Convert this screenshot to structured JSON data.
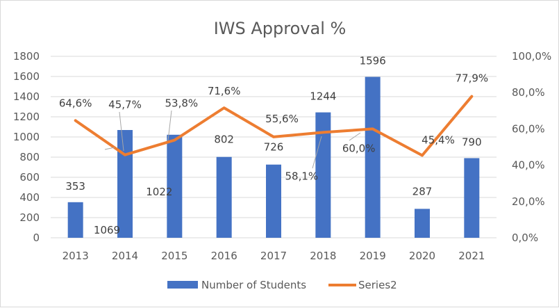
{
  "chart_data": {
    "type": "bar+line",
    "title": "IWS Approval %",
    "categories": [
      "2013",
      "2014",
      "2015",
      "2016",
      "2017",
      "2018",
      "2019",
      "2020",
      "2021"
    ],
    "series": [
      {
        "name": "Number of Students",
        "type": "bar",
        "axis": "left",
        "values": [
          353,
          1069,
          1022,
          802,
          726,
          1244,
          1596,
          287,
          790
        ],
        "labels": [
          "353",
          "1069",
          "1022",
          "802",
          "726",
          "1244",
          "1596",
          "287",
          "790"
        ],
        "color": "#4472C4"
      },
      {
        "name": "Series2",
        "type": "line",
        "axis": "right",
        "values": [
          64.6,
          45.7,
          53.8,
          71.6,
          55.6,
          58.1,
          60.0,
          45.4,
          77.9
        ],
        "labels": [
          "64,6%",
          "45,7%",
          "53,8%",
          "71,6%",
          "55,6%",
          "58,1%",
          "60,0%",
          "45,4%",
          "77,9%"
        ],
        "color": "#ED7D31"
      }
    ],
    "y_left": {
      "min": 0,
      "max": 1800,
      "step": 200,
      "ticks": [
        "0",
        "200",
        "400",
        "600",
        "800",
        "1000",
        "1200",
        "1400",
        "1600",
        "1800"
      ]
    },
    "y_right": {
      "min": 0,
      "max": 100,
      "step": 20,
      "ticks": [
        "0,0%",
        "20,0%",
        "40,0%",
        "60,0%",
        "80,0%",
        "100,0%"
      ]
    },
    "grid": true,
    "legend": "bottom"
  }
}
